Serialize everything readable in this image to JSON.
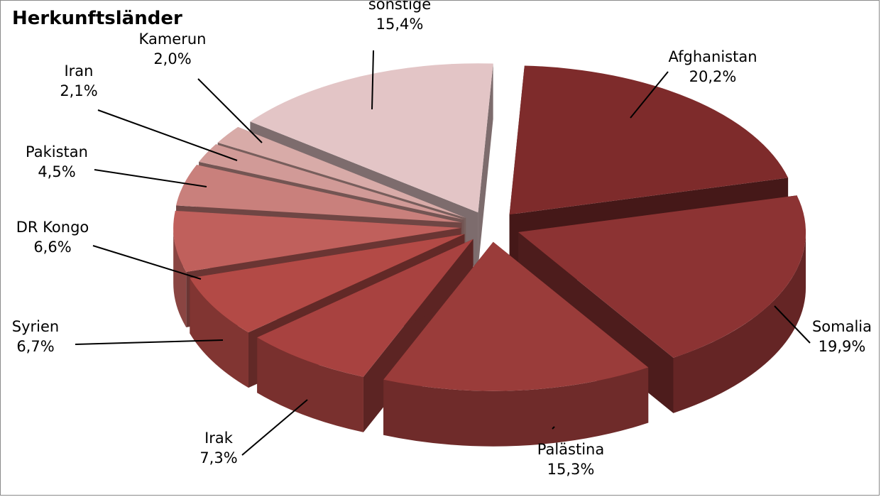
{
  "chart_data": {
    "type": "pie",
    "style": "3d-exploded",
    "title": "Herkunftsländer",
    "categories": [
      "Afghanistan",
      "Somalia",
      "Palästina",
      "Irak",
      "Syrien",
      "DR Kongo",
      "Pakistan",
      "Iran",
      "Kamerun",
      "sonstige"
    ],
    "values": [
      20.2,
      19.9,
      15.3,
      7.3,
      6.7,
      6.6,
      4.5,
      2.1,
      2.0,
      15.4
    ],
    "value_labels": [
      "20,2%",
      "19,9%",
      "15,3%",
      "7,3%",
      "6,7%",
      "6,6%",
      "4,5%",
      "2,1%",
      "2,0%",
      "15,4%"
    ],
    "colors": [
      "#7e2b2b",
      "#8c3333",
      "#9a3c3a",
      "#a84240",
      "#b34a46",
      "#c0605c",
      "#c9807c",
      "#d19a97",
      "#d8aba8",
      "#e3c5c6"
    ],
    "legend": "none"
  }
}
